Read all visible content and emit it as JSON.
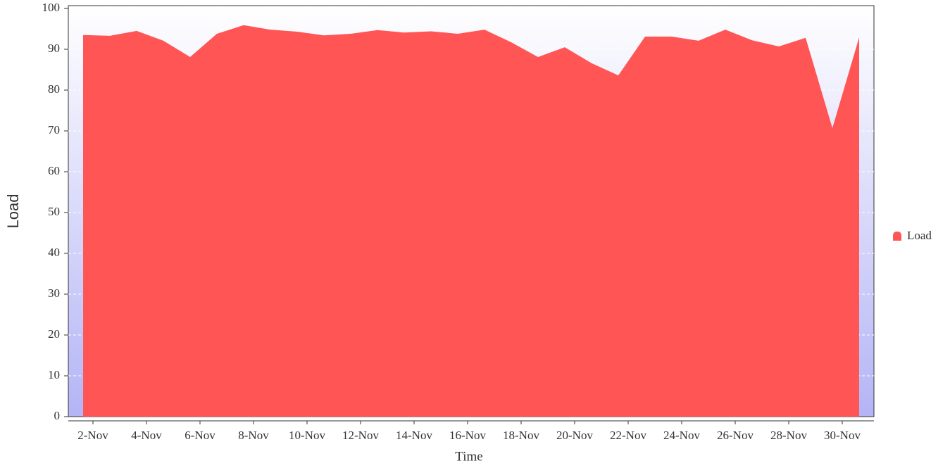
{
  "chart_data": {
    "type": "area",
    "x_label": "Time",
    "y_label": "Load",
    "categories": [
      null,
      "2-Nov",
      null,
      "4-Nov",
      null,
      "6-Nov",
      null,
      "8-Nov",
      null,
      "10-Nov",
      null,
      "12-Nov",
      null,
      "14-Nov",
      null,
      "16-Nov",
      null,
      "18-Nov",
      null,
      "20-Nov",
      null,
      "22-Nov",
      null,
      "24-Nov",
      null,
      "26-Nov",
      null,
      "28-Nov",
      null,
      "30-Nov"
    ],
    "series": [
      {
        "name": "Load",
        "color": "#ff5555",
        "values": [
          93.5,
          93.3,
          94.5,
          92.1,
          88.1,
          93.8,
          95.9,
          94.8,
          94.3,
          93.4,
          93.8,
          94.7,
          94.1,
          94.4,
          93.8,
          94.8,
          91.7,
          88.1,
          90.5,
          86.6,
          83.6,
          93.1,
          93.1,
          92.1,
          94.8,
          92.2,
          90.7,
          92.8,
          70.7,
          92.9
        ]
      }
    ],
    "ylim": [
      0,
      100
    ],
    "yticks": [
      0,
      10,
      20,
      30,
      40,
      50,
      60,
      70,
      80,
      90,
      100
    ],
    "grid": true,
    "legend": "right"
  }
}
